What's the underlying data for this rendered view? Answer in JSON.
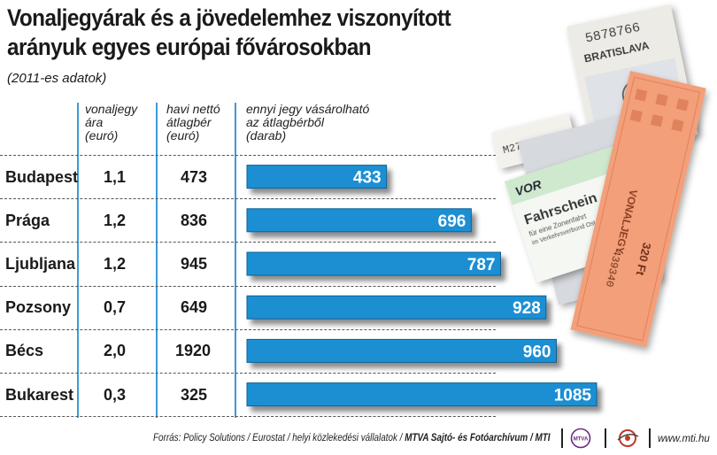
{
  "title_line1": "Vonaljegyárak és a jövedelemhez viszonyított",
  "title_line2": "arányuk egyes európai fővárosokban",
  "subtitle": "(2011-es adatok)",
  "headers": {
    "price": [
      "vonaljegy",
      "ára",
      "(euró)"
    ],
    "wage": [
      "havi nettó",
      "átlagbér",
      "(euró)"
    ],
    "count": [
      "ennyi jegy vásárolható",
      "az átlagbérből",
      "(darab)"
    ]
  },
  "rows": [
    {
      "city": "Budapest",
      "price": "1,1",
      "wage": "473",
      "count": "433"
    },
    {
      "city": "Prága",
      "price": "1,2",
      "wage": "836",
      "count": "696"
    },
    {
      "city": "Ljubljana",
      "price": "1,2",
      "wage": "945",
      "count": "787"
    },
    {
      "city": "Pozsony",
      "price": "0,7",
      "wage": "649",
      "count": "928"
    },
    {
      "city": "Bécs",
      "price": "2,0",
      "wage": "1920",
      "count": "960"
    },
    {
      "city": "Bukarest",
      "price": "0,3",
      "wage": "325",
      "count": "1085"
    }
  ],
  "chart_data": {
    "type": "bar",
    "orientation": "horizontal",
    "title": "Vonaljegyárak és a jövedelemhez viszonyított arányuk egyes európai fővárosokban",
    "subtitle": "(2011-es adatok)",
    "categories": [
      "Budapest",
      "Prága",
      "Ljubljana",
      "Pozsony",
      "Bécs",
      "Bukarest"
    ],
    "values": [
      433,
      696,
      787,
      928,
      960,
      1085
    ],
    "xlim": [
      0,
      1085
    ],
    "data_labels": true,
    "bar_color": "#1f8fd3"
  },
  "ticket_text": {
    "serial": "5878766",
    "city_ticket": "BRATISLAVA",
    "small_serial": "M275740",
    "vor": "VOR",
    "fahrschein": "Fahrschein",
    "fahrschein_sub1": "für eine Zonenfahrt",
    "fahrschein_sub2": "im Verkehrsverbund Ost",
    "vonaljegy": "VONALJEGY",
    "price_ft": "320 Ft",
    "orange_serial": "439340",
    "num_351": "351"
  },
  "footer": {
    "source_label": "Forrás:",
    "source_text": "Policy Solutions / Eurostat / helyi közlekedési vállalatok /",
    "agency": "MTVA Sajtó- és Fotóarchívum / MTI",
    "logo1": "MTVA",
    "website": "www.mti.hu"
  }
}
